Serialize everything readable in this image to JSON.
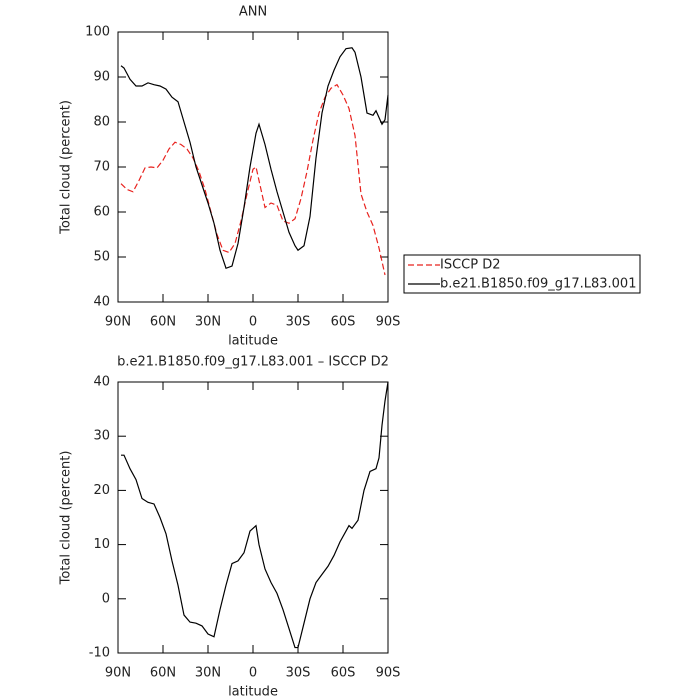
{
  "chart_data": [
    {
      "type": "line",
      "title": "ANN",
      "xlabel": "latitude",
      "ylabel": "Total cloud (percent)",
      "xlim": [
        90,
        -90
      ],
      "xticks": [
        {
          "value": 90,
          "label": "90N"
        },
        {
          "value": 60,
          "label": "60N"
        },
        {
          "value": 30,
          "label": "30N"
        },
        0,
        {
          "value": -30,
          "label": "30S"
        },
        {
          "value": -60,
          "label": "60S"
        },
        {
          "value": -90,
          "label": "90S"
        }
      ],
      "ylim": [
        40,
        100
      ],
      "yticks": [
        40,
        50,
        60,
        70,
        80,
        90,
        100
      ],
      "legend": "right",
      "series": [
        {
          "name": "ISCCP D2",
          "color": "#e8231f",
          "dashed": true,
          "x": [
            88,
            84,
            80,
            76,
            72,
            68,
            64,
            60,
            56,
            52,
            48,
            44,
            40,
            36,
            32,
            28,
            24,
            20,
            16,
            12,
            8,
            4,
            0,
            -2,
            -4,
            -8,
            -12,
            -16,
            -20,
            -24,
            -28,
            -32,
            -36,
            -40,
            -44,
            -48,
            -52,
            -56,
            -60,
            -64,
            -68,
            -72,
            -76,
            -80,
            -84,
            -88
          ],
          "values": [
            66.3,
            65,
            64.5,
            67,
            69.8,
            70,
            69.8,
            71.5,
            74,
            75.5,
            75,
            74,
            72,
            69,
            65,
            60,
            55,
            51.5,
            51,
            53,
            58,
            64,
            69.5,
            70,
            67,
            61,
            62,
            61.5,
            58,
            57.5,
            58.5,
            63,
            69,
            76,
            82,
            85.5,
            87.5,
            88.3,
            86,
            83,
            77,
            64,
            60,
            57,
            52,
            46
          ]
        },
        {
          "name": "b.e21.B1850.f09_g17.L83.001",
          "color": "#000000",
          "dashed": false,
          "x": [
            88,
            86,
            82,
            78,
            74,
            70,
            66,
            62,
            58,
            54,
            50,
            46,
            42,
            38,
            34,
            30,
            26,
            22,
            18,
            14,
            10,
            6,
            2,
            -2,
            -4,
            -8,
            -12,
            -16,
            -20,
            -24,
            -28,
            -30,
            -34,
            -38,
            -42,
            -46,
            -50,
            -54,
            -58,
            -62,
            -66,
            -68,
            -72,
            -76,
            -80,
            -82,
            -86,
            -88,
            -90
          ],
          "values": [
            92.5,
            92,
            89.5,
            88,
            88,
            88.7,
            88.3,
            88,
            87.3,
            85.5,
            84.5,
            80,
            75.5,
            70,
            66,
            62,
            57.5,
            51.5,
            47.5,
            48,
            53,
            61,
            70,
            77.5,
            79.5,
            75,
            69.5,
            64.5,
            60,
            55.5,
            52.5,
            51.5,
            52.5,
            59,
            72,
            82,
            88,
            91.5,
            94.5,
            96.3,
            96.5,
            95.5,
            90,
            82,
            81.5,
            82.5,
            79.5,
            80.5,
            86
          ]
        }
      ]
    },
    {
      "type": "line",
      "title": "b.e21.B1850.f09_g17.L83.001 – ISCCP D2",
      "xlabel": "latitude",
      "ylabel": "Total cloud (percent)",
      "xlim": [
        90,
        -90
      ],
      "xticks": [
        {
          "value": 90,
          "label": "90N"
        },
        {
          "value": 60,
          "label": "60N"
        },
        {
          "value": 30,
          "label": "30N"
        },
        0,
        {
          "value": -30,
          "label": "30S"
        },
        {
          "value": -60,
          "label": "60S"
        },
        {
          "value": -90,
          "label": "90S"
        }
      ],
      "ylim": [
        -10,
        40
      ],
      "yticks": [
        -10,
        0,
        10,
        20,
        30,
        40
      ],
      "series": [
        {
          "color": "#000000",
          "dashed": false,
          "x": [
            88,
            86,
            82,
            78,
            74,
            70,
            66,
            62,
            58,
            54,
            50,
            46,
            42,
            38,
            34,
            30,
            26,
            22,
            18,
            14,
            10,
            6,
            2,
            -2,
            -4,
            -8,
            -12,
            -16,
            -20,
            -24,
            -28,
            -30,
            -34,
            -38,
            -42,
            -46,
            -50,
            -54,
            -58,
            -62,
            -64,
            -66,
            -70,
            -74,
            -78,
            -82,
            -84,
            -86,
            -88,
            -90
          ],
          "values": [
            26.5,
            26.5,
            24,
            22,
            18.5,
            17.8,
            17.5,
            15,
            12,
            7,
            2.5,
            -3,
            -4.3,
            -4.5,
            -5,
            -6.5,
            -7,
            -2,
            2.5,
            6.5,
            7,
            8.5,
            12.5,
            13.5,
            10,
            5.5,
            3,
            1,
            -2,
            -5.5,
            -9,
            -9,
            -4.5,
            0,
            3,
            4.5,
            6,
            8,
            10.5,
            12.5,
            13.5,
            13,
            14.5,
            20,
            23.5,
            24,
            26,
            32,
            36.5,
            40
          ]
        }
      ]
    }
  ]
}
